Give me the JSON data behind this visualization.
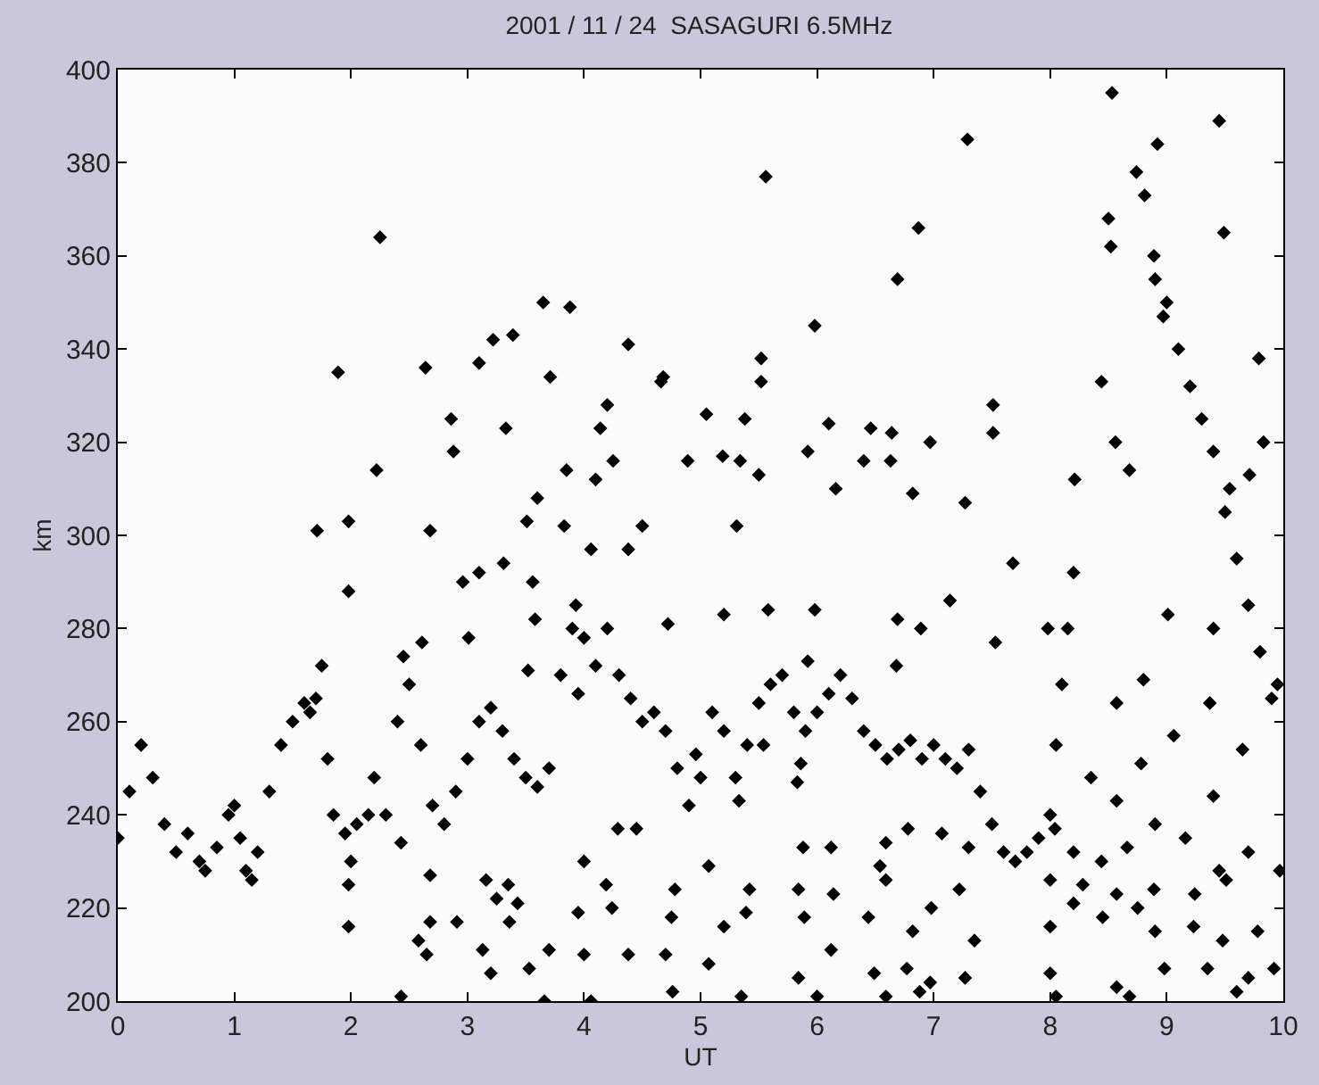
{
  "chart_data": {
    "type": "scatter",
    "title": "2001 / 11 / 24  SASAGURI 6.5MHz",
    "xlabel": "UT",
    "ylabel": "km",
    "x": [
      0,
      0.1,
      0.2,
      0.3,
      0.4,
      0.5,
      0.6,
      0.7,
      0.75,
      0.85,
      0.95,
      1.0,
      1.05,
      1.1,
      1.15,
      1.2,
      1.3,
      1.4,
      1.5,
      1.6,
      1.65,
      1.7,
      1.75,
      1.8,
      1.85,
      1.95,
      2.0,
      2.05,
      2.15,
      2.2,
      2.3,
      2.4,
      2.45,
      2.5,
      2.6,
      2.7,
      2.8,
      2.9,
      3.0,
      3.1,
      3.2,
      3.3,
      3.4,
      3.5,
      3.6,
      3.7,
      3.8,
      3.9,
      4.0,
      4.1,
      4.2,
      4.3,
      4.4,
      4.5,
      4.6,
      4.7,
      4.8,
      4.9,
      5.0,
      5.1,
      5.2,
      5.3,
      5.4,
      5.5,
      5.6,
      5.7,
      5.8,
      5.9,
      6.0,
      6.1,
      6.2,
      6.3,
      6.4,
      6.5,
      6.6,
      6.7,
      6.8,
      6.9,
      7.0,
      7.1,
      7.2,
      7.3,
      7.4,
      7.5,
      7.6,
      7.7,
      7.8,
      7.9,
      8.0,
      8.05,
      8.1,
      8.15,
      8.2,
      9.0,
      9.1,
      9.2,
      9.3,
      9.4,
      9.5,
      9.6,
      9.7,
      9.8,
      9.9,
      9.95,
      1.89,
      2.25,
      2.64,
      3.65,
      3.88,
      3.39,
      4.38,
      4.66,
      2.22,
      2.86,
      2.88,
      3.1,
      3.22,
      3.33,
      4.14,
      4.2,
      3.71,
      3.85,
      4.1,
      3.6,
      4.25,
      8.53,
      9.45,
      8.92,
      7.29,
      5.56,
      6.87,
      6.69,
      5.98,
      8.74,
      8.81,
      8.5,
      9.49,
      8.52,
      8.89,
      8.9,
      8.97,
      9.79,
      4.68,
      5.52,
      5.52,
      5.05,
      5.38,
      6.1,
      6.46,
      6.64,
      6.97,
      7.51,
      7.51,
      8.44,
      8.56,
      9.83,
      4.89,
      5.19,
      5.34,
      5.5,
      5.92,
      6.4,
      6.63,
      8.21,
      8.68,
      9.71,
      6.16,
      6.82,
      7.27,
      9.54,
      1.71,
      1.98,
      1.98,
      2.68,
      1.98,
      1.98,
      2.43,
      2.43,
      2.61,
      2.68,
      2.68,
      2.58,
      2.65,
      2.91,
      3.01,
      2.96,
      3.1,
      3.31,
      3.13,
      3.2,
      3.16,
      3.25,
      3.35,
      3.43,
      3.36,
      3.51,
      3.56,
      3.58,
      3.52,
      3.53,
      3.66,
      3.7,
      3.83,
      3.93,
      3.95,
      3.95,
      4.06,
      4.0,
      4.06,
      4.0,
      4.19,
      4.24,
      4.38,
      4.38,
      4.45,
      4.29,
      4.5,
      5.31,
      4.72,
      5.2,
      5.58,
      5.98,
      5.92,
      6.69,
      7.14,
      7.53,
      6.89,
      6.68,
      7.68,
      7.98,
      9.4,
      9.01,
      8.8,
      9.37,
      8.57,
      8.35,
      8.57,
      8.78,
      9.06,
      9.65,
      9.4,
      4.96,
      5.54,
      5.86,
      5.83,
      5.33,
      5.88,
      6.12,
      6.59,
      6.54,
      6.78,
      7.07,
      7.3,
      8.04,
      8.2,
      8.44,
      8.66,
      8.9,
      9.16,
      9.45,
      9.7,
      9.97,
      5.07,
      4.78,
      5.42,
      5.84,
      6.14,
      6.59,
      7.22,
      8.0,
      8.28,
      8.57,
      8.89,
      9.24,
      9.51,
      4.75,
      5.2,
      5.39,
      5.89,
      6.44,
      6.98,
      6.82,
      7.35,
      8.0,
      8.2,
      8.45,
      8.75,
      8.9,
      9.23,
      9.48,
      9.78,
      4.7,
      5.07,
      5.84,
      6.12,
      6.49,
      6.77,
      6.97,
      7.27,
      8.0,
      8.57,
      8.98,
      9.35,
      9.7,
      9.92,
      4.76,
      5.35,
      6.0,
      6.59,
      6.88,
      8.05,
      8.68,
      9.6
    ],
    "values": [
      235,
      245,
      255,
      248,
      238,
      232,
      236,
      230,
      228,
      233,
      240,
      242,
      235,
      228,
      226,
      232,
      245,
      255,
      260,
      264,
      262,
      265,
      272,
      252,
      240,
      236,
      230,
      238,
      240,
      248,
      240,
      260,
      274,
      268,
      255,
      242,
      238,
      245,
      252,
      260,
      263,
      258,
      252,
      248,
      246,
      250,
      270,
      280,
      278,
      272,
      280,
      270,
      265,
      260,
      262,
      258,
      250,
      242,
      248,
      262,
      258,
      248,
      255,
      264,
      268,
      270,
      262,
      258,
      262,
      266,
      270,
      265,
      258,
      255,
      252,
      254,
      256,
      252,
      255,
      252,
      250,
      254,
      245,
      238,
      232,
      230,
      232,
      235,
      240,
      255,
      268,
      280,
      292,
      350,
      340,
      332,
      325,
      318,
      305,
      295,
      285,
      275,
      265,
      268,
      335,
      364,
      336,
      350,
      349,
      343,
      341,
      333,
      314,
      325,
      318,
      337,
      342,
      323,
      323,
      328,
      334,
      314,
      312,
      308,
      316,
      395,
      389,
      384,
      385,
      377,
      366,
      355,
      345,
      378,
      373,
      368,
      365,
      362,
      360,
      355,
      347,
      338,
      334,
      338,
      333,
      326,
      325,
      324,
      323,
      322,
      320,
      328,
      322,
      333,
      320,
      320,
      316,
      317,
      316,
      313,
      318,
      316,
      316,
      312,
      314,
      313,
      310,
      309,
      307,
      310,
      301,
      303,
      288,
      301,
      225,
      216,
      201,
      234,
      277,
      227,
      217,
      213,
      210,
      217,
      278,
      290,
      292,
      294,
      211,
      206,
      226,
      222,
      225,
      221,
      217,
      303,
      290,
      282,
      271,
      207,
      200,
      211,
      302,
      285,
      266,
      219,
      297,
      210,
      200,
      230,
      225,
      220,
      210,
      297,
      237,
      237,
      302,
      302,
      281,
      283,
      284,
      284,
      273,
      282,
      286,
      277,
      280,
      272,
      294,
      280,
      280,
      283,
      269,
      264,
      264,
      248,
      243,
      251,
      257,
      254,
      244,
      253,
      255,
      251,
      247,
      243,
      233,
      233,
      234,
      229,
      237,
      236,
      233,
      237,
      232,
      230,
      233,
      238,
      235,
      228,
      232,
      228,
      229,
      224,
      224,
      224,
      223,
      226,
      224,
      226,
      225,
      223,
      224,
      223,
      226,
      218,
      216,
      219,
      218,
      218,
      220,
      215,
      213,
      216,
      221,
      218,
      220,
      215,
      216,
      213,
      215,
      210,
      208,
      205,
      211,
      206,
      207,
      204,
      205,
      206,
      203,
      207,
      207,
      205,
      207,
      202,
      201,
      201,
      201,
      202,
      201,
      201,
      202
    ],
    "color": "#000000",
    "marker": "diamond",
    "xlim": [
      0,
      10
    ],
    "xticks": [
      0,
      1,
      2,
      3,
      4,
      5,
      6,
      7,
      8,
      9,
      10
    ],
    "ylim": [
      200,
      400
    ],
    "yticks": [
      200,
      220,
      240,
      260,
      280,
      300,
      320,
      340,
      360,
      380,
      400
    ]
  }
}
